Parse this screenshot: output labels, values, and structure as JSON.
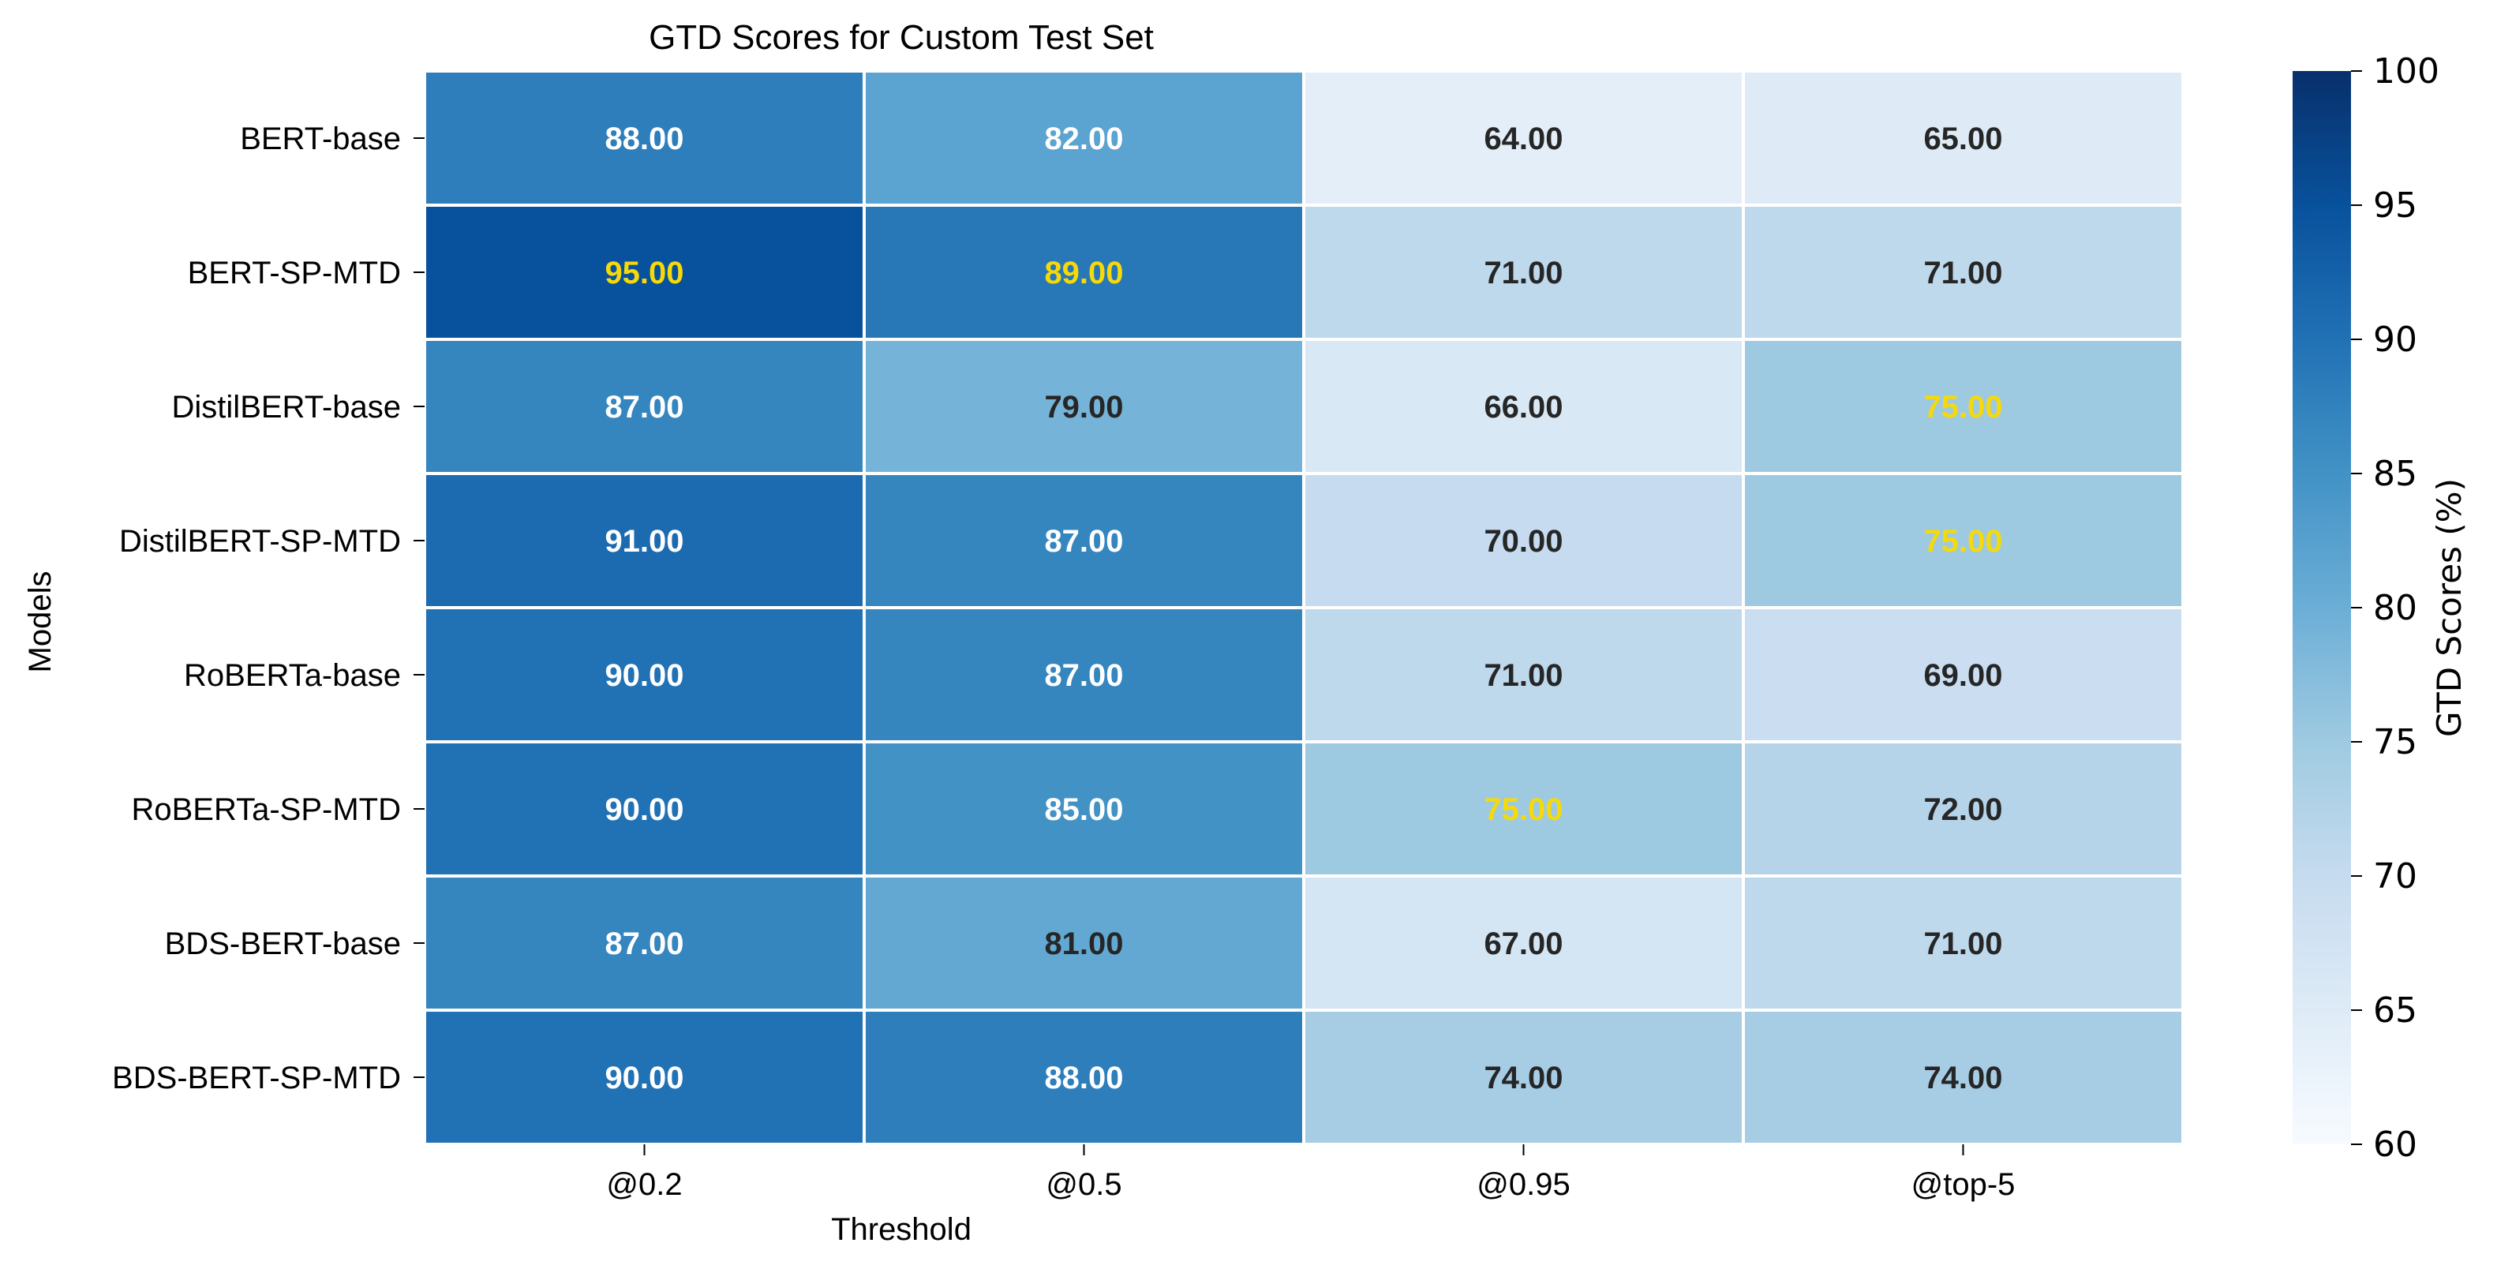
{
  "chart_data": {
    "type": "heatmap",
    "title": "GTD Scores for Custom Test Set",
    "xlabel": "Threshold",
    "ylabel": "Models",
    "colorbar_label": "GTD Scores (%)",
    "x": [
      "@0.2",
      "@0.5",
      "@0.95",
      "@top-5"
    ],
    "y": [
      "BERT-base",
      "BERT-SP-MTD",
      "DistilBERT-base",
      "DistilBERT-SP-MTD",
      "RoBERTa-base",
      "RoBERTa-SP-MTD",
      "BDS-BERT-base",
      "BDS-BERT-SP-MTD"
    ],
    "values": [
      [
        88,
        82,
        64,
        65
      ],
      [
        95,
        89,
        71,
        71
      ],
      [
        87,
        79,
        66,
        75
      ],
      [
        91,
        87,
        70,
        75
      ],
      [
        90,
        87,
        71,
        69
      ],
      [
        90,
        85,
        75,
        72
      ],
      [
        87,
        81,
        67,
        71
      ],
      [
        90,
        88,
        74,
        74
      ]
    ],
    "labels": [
      [
        "88.00",
        "82.00",
        "64.00",
        "65.00"
      ],
      [
        "95.00",
        "89.00",
        "71.00",
        "71.00"
      ],
      [
        "87.00",
        "79.00",
        "66.00",
        "75.00"
      ],
      [
        "91.00",
        "87.00",
        "70.00",
        "75.00"
      ],
      [
        "90.00",
        "87.00",
        "71.00",
        "69.00"
      ],
      [
        "90.00",
        "85.00",
        "75.00",
        "72.00"
      ],
      [
        "87.00",
        "81.00",
        "67.00",
        "71.00"
      ],
      [
        "90.00",
        "88.00",
        "74.00",
        "74.00"
      ]
    ],
    "highlighted": [
      [
        false,
        false,
        false,
        false
      ],
      [
        true,
        true,
        false,
        false
      ],
      [
        false,
        false,
        false,
        true
      ],
      [
        false,
        false,
        false,
        true
      ],
      [
        false,
        false,
        false,
        false
      ],
      [
        false,
        false,
        true,
        false
      ],
      [
        false,
        false,
        false,
        false
      ],
      [
        false,
        false,
        false,
        false
      ]
    ],
    "vmin": 60,
    "vmax": 100,
    "colorbar_ticks": [
      60,
      65,
      70,
      75,
      80,
      85,
      90,
      95,
      100
    ],
    "colormap": "Blues",
    "highlight_color": "#f5d90a",
    "grid": true,
    "legend": "colorbar-right"
  }
}
